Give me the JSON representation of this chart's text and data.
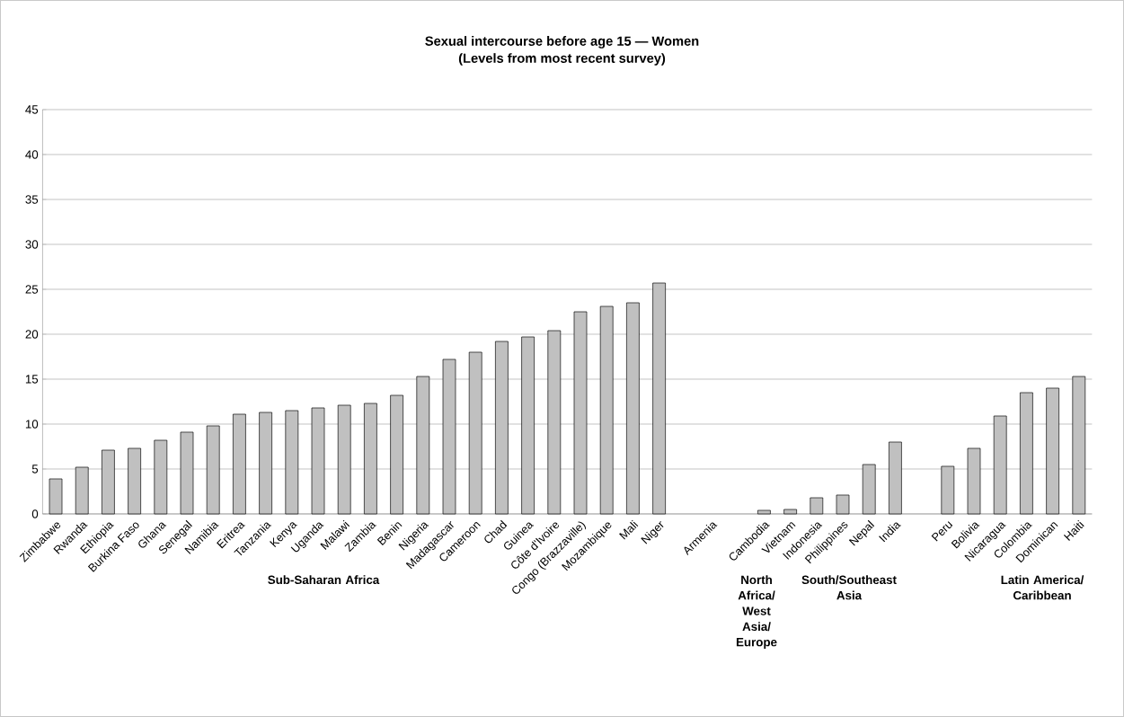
{
  "chart_data": {
    "type": "bar",
    "title": "Sexual intercourse before age 15 — Women",
    "subtitle": "(Levels from most recent survey)",
    "categories": [
      "Zimbabwe",
      "Rwanda",
      "Ethiopia",
      "Burkina Faso",
      "Ghana",
      "Senegal",
      "Namibia",
      "Eritrea",
      "Tanzania",
      "Kenya",
      "Uganda",
      "Malawi",
      "Zambia",
      "Benin",
      "Nigeria",
      "Madagascar",
      "Cameroon",
      "Chad",
      "Guinea",
      "Côte d'Ivoire",
      "Congo (Brazzaville)",
      "Mozambique",
      "Mali",
      "Niger",
      null,
      "Armenia",
      null,
      "Cambodia",
      "Vietnam",
      "Indonesia",
      "Philippines",
      "Nepal",
      "India",
      null,
      "Peru",
      "Bolivia",
      "Nicaragua",
      "Colombia",
      "Dominican",
      "Haiti"
    ],
    "values": [
      3.9,
      5.2,
      7.1,
      7.3,
      8.2,
      9.1,
      9.8,
      11.1,
      11.3,
      11.5,
      11.8,
      12.1,
      12.3,
      13.2,
      15.3,
      17.2,
      18.0,
      19.2,
      19.7,
      20.4,
      22.5,
      23.1,
      23.5,
      25.7,
      null,
      null,
      null,
      0.4,
      0.5,
      1.8,
      2.1,
      5.5,
      8.0,
      null,
      5.3,
      7.3,
      10.9,
      13.5,
      14.0,
      15.3
    ],
    "color": "#c0c0c0",
    "ylim": [
      0,
      45
    ],
    "yticks": [
      0,
      5,
      10,
      15,
      20,
      25,
      30,
      35,
      40,
      45
    ],
    "grid": "y",
    "annotations": [
      "Sub-Saharan Africa",
      "North Africa/ West Asia/ Europe",
      "South/Southeast Asia",
      "Latin America/ Caribbean"
    ]
  }
}
